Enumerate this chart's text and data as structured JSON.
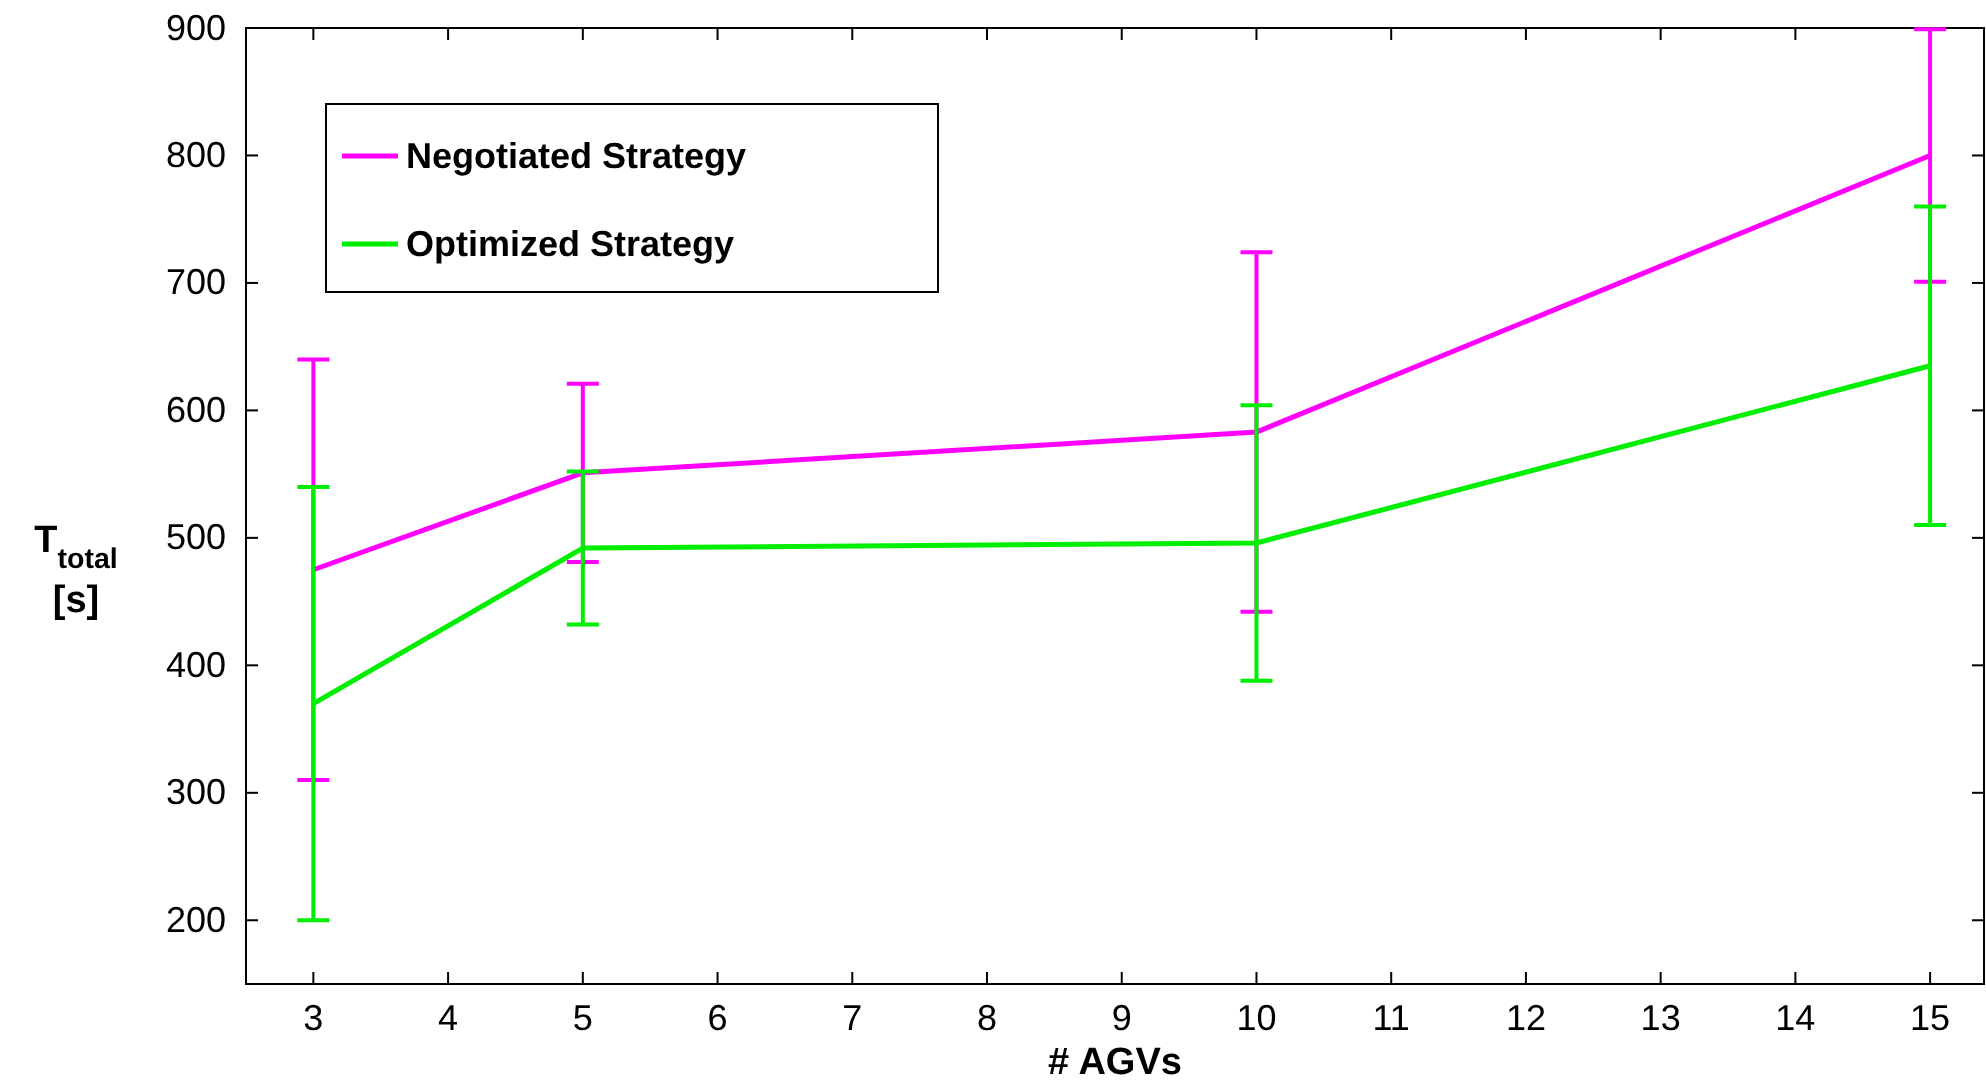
{
  "chart_data": {
    "type": "line",
    "xlabel": "# AGVs",
    "ylabel": "T$_{total}$ [s]",
    "x": [
      3,
      5,
      10,
      15
    ],
    "xlim": [
      2.5,
      15.4
    ],
    "xticks": [
      3,
      4,
      5,
      6,
      7,
      8,
      9,
      10,
      11,
      12,
      13,
      14,
      15
    ],
    "ylim": [
      150,
      900
    ],
    "yticks": [
      200,
      300,
      400,
      500,
      600,
      700,
      800,
      900
    ],
    "legend": "top left",
    "grid": false,
    "marker": "none",
    "line_style": "solid",
    "series": [
      {
        "name": "Negotiated Strategy",
        "color": "#ff00ff",
        "values": [
          475,
          551,
          583,
          800
        ],
        "errors": [
          165,
          70,
          141,
          99
        ]
      },
      {
        "name": "Optimized Strategy",
        "color": "#00ee00",
        "values": [
          370,
          492,
          496,
          635
        ],
        "errors": [
          170,
          60,
          108,
          125
        ]
      }
    ]
  }
}
